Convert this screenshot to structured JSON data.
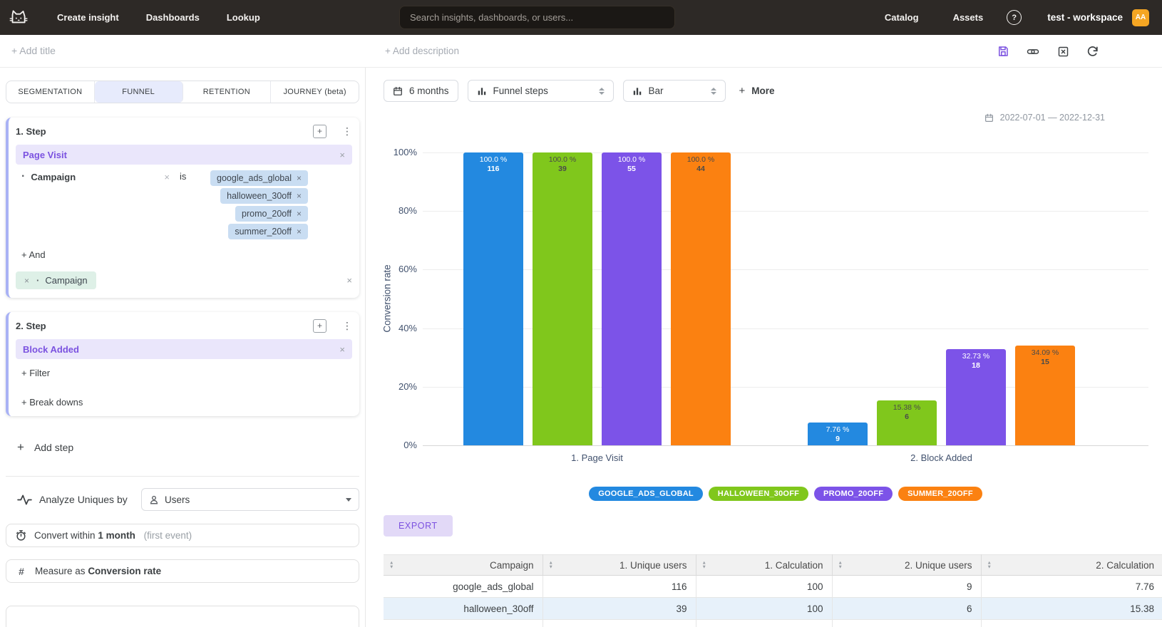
{
  "navbar": {
    "links": [
      "Create insight",
      "Dashboards",
      "Lookup"
    ],
    "search_placeholder": "Search insights, dashboards, or users...",
    "right_links": [
      "Catalog",
      "Assets"
    ],
    "workspace_name": "test - workspace",
    "avatar_initials": "AA",
    "avatar_color": "#F5A623"
  },
  "title_bar": {
    "add_title": "+ Add title",
    "add_description": "+ Add description"
  },
  "builder": {
    "tabs": [
      {
        "label": "SEGMENTATION",
        "active": false
      },
      {
        "label": "FUNNEL",
        "active": true
      },
      {
        "label": "RETENTION",
        "active": false
      },
      {
        "label": "JOURNEY (beta)",
        "active": false
      }
    ],
    "step1": {
      "header": "1. Step",
      "event_name": "Page Visit",
      "filter_property": "Campaign",
      "filter_operator": "is",
      "filter_values": [
        "google_ads_global",
        "halloween_30off",
        "promo_20off",
        "summer_20off"
      ],
      "and_label": "+ And",
      "breakdown": "Campaign"
    },
    "step2": {
      "header": "2. Step",
      "event_name": "Block Added",
      "filter_label": "+ Filter",
      "breakdowns_label": "+ Break downs"
    },
    "add_step_label": "Add step",
    "analyze": {
      "label": "Analyze Uniques by",
      "value": "Users"
    },
    "convert": {
      "prefix": "Convert within",
      "value": "1 month",
      "hint": "(first event)"
    },
    "measure": {
      "prefix": "Measure as",
      "value": "Conversion rate"
    }
  },
  "chart_toolbar": {
    "date_button": "6 months",
    "insight_type": "Funnel steps",
    "chart_style": "Bar",
    "more_label": "More",
    "date_range": "2022-07-01 — 2022-12-31"
  },
  "chart_data": {
    "type": "bar",
    "title": "",
    "ylabel": "Conversion rate",
    "ylim": [
      0,
      100
    ],
    "yticks": [
      "100%",
      "80%",
      "60%",
      "40%",
      "20%",
      "0%"
    ],
    "categories": [
      "1. Page Visit",
      "2. Block Added"
    ],
    "series": [
      {
        "name": "GOOGLE_ADS_GLOBAL",
        "color": "#2389E0",
        "label_style": "light",
        "values": [
          100.0,
          7.76
        ],
        "value_labels": [
          "100.0 %",
          "7.76 %"
        ],
        "counts": [
          116,
          9
        ]
      },
      {
        "name": "HALLOWEEN_30OFF",
        "color": "#80C71C",
        "label_style": "dark",
        "values": [
          100.0,
          15.38
        ],
        "value_labels": [
          "100.0 %",
          "15.38 %"
        ],
        "counts": [
          39,
          6
        ]
      },
      {
        "name": "PROMO_20OFF",
        "color": "#7C53E8",
        "label_style": "light",
        "values": [
          100.0,
          32.73
        ],
        "value_labels": [
          "100.0 %",
          "32.73 %"
        ],
        "counts": [
          55,
          18
        ]
      },
      {
        "name": "SUMMER_20OFF",
        "color": "#FB8111",
        "label_style": "dark",
        "values": [
          100.0,
          34.09
        ],
        "value_labels": [
          "100.0 %",
          "34.09 %"
        ],
        "counts": [
          44,
          15
        ]
      }
    ],
    "legend_position": "bottom",
    "grid": true
  },
  "export_label": "EXPORT",
  "table": {
    "columns": [
      "Campaign",
      "1. Unique users",
      "1. Calculation",
      "2. Unique users",
      "2. Calculation"
    ],
    "rows": [
      [
        "google_ads_global",
        "116",
        "100",
        "9",
        "7.76"
      ],
      [
        "halloween_30off",
        "39",
        "100",
        "6",
        "15.38"
      ]
    ],
    "highlighted_row_index": 1
  }
}
